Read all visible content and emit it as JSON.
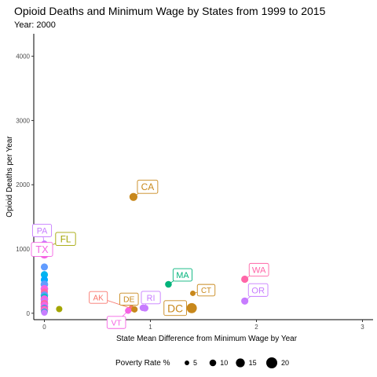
{
  "chart_data": {
    "type": "scatter",
    "title": "Opioid Deaths and Minimum Wage by States from 1999 to 2015",
    "subtitle": "Year: 2000",
    "xlabel": "State Mean Difference from Minimum Wage by Year",
    "ylabel": "Opioid Deaths per Year",
    "xlim": [
      -0.1,
      3.1
    ],
    "ylim": [
      -100,
      4350
    ],
    "x_ticks": [
      0,
      1,
      2,
      3
    ],
    "y_ticks": [
      0,
      1000,
      2000,
      3000,
      4000
    ],
    "grid": false,
    "legend": {
      "title": "Poverty Rate %",
      "position": "bottom",
      "entries": [
        {
          "label": "5",
          "value": 5
        },
        {
          "label": "10",
          "value": 10
        },
        {
          "label": "15",
          "value": 15
        },
        {
          "label": "20",
          "value": 20
        }
      ]
    },
    "labeled_points": [
      {
        "label": "CA",
        "x": 0.84,
        "y": 1810,
        "poverty": 13,
        "color": "#c8881c"
      },
      {
        "label": "PA",
        "x": 0.0,
        "y": 1080,
        "poverty": 10,
        "color": "#c77cff"
      },
      {
        "label": "FL",
        "x": 0.0,
        "y": 1010,
        "poverty": 12,
        "color": "#a3a500"
      },
      {
        "label": "TX",
        "x": 0.0,
        "y": 920,
        "poverty": 15,
        "color": "#f564e3"
      },
      {
        "label": "MA",
        "x": 1.17,
        "y": 450,
        "poverty": 10,
        "color": "#00b37a"
      },
      {
        "label": "WA",
        "x": 1.89,
        "y": 530,
        "poverty": 11,
        "color": "#ff66a8"
      },
      {
        "label": "OR",
        "x": 1.89,
        "y": 190,
        "poverty": 11,
        "color": "#c77cff"
      },
      {
        "label": "AK",
        "x": 0.82,
        "y": 75,
        "poverty": 8,
        "color": "#f8766d"
      },
      {
        "label": "DE",
        "x": 0.85,
        "y": 60,
        "poverty": 9,
        "color": "#c8881c"
      },
      {
        "label": "RI",
        "x": 0.93,
        "y": 85,
        "poverty": 10,
        "color": "#c77cff"
      },
      {
        "label": "VT",
        "x": 0.79,
        "y": 40,
        "poverty": 9,
        "color": "#f564e3"
      },
      {
        "label": "CT",
        "x": 1.4,
        "y": 310,
        "poverty": 7,
        "color": "#c8881c"
      },
      {
        "label": "DC",
        "x": 1.39,
        "y": 80,
        "poverty": 18,
        "color": "#c8881c"
      }
    ],
    "unlabeled_points": [
      {
        "x": 0.0,
        "y": 720,
        "poverty": 11,
        "color": "#619cff"
      },
      {
        "x": 0.0,
        "y": 600,
        "poverty": 11,
        "color": "#00b4f0"
      },
      {
        "x": 0.0,
        "y": 520,
        "poverty": 11,
        "color": "#00a9ff"
      },
      {
        "x": 0.0,
        "y": 450,
        "poverty": 12,
        "color": "#619cff"
      },
      {
        "x": 0.0,
        "y": 380,
        "poverty": 12,
        "color": "#f564e3"
      },
      {
        "x": 0.0,
        "y": 330,
        "poverty": 11,
        "color": "#ff66a8"
      },
      {
        "x": 0.0,
        "y": 280,
        "poverty": 12,
        "color": "#619cff"
      },
      {
        "x": 0.0,
        "y": 250,
        "poverty": 11,
        "color": "#00bfc4"
      },
      {
        "x": 0.0,
        "y": 220,
        "poverty": 12,
        "color": "#f564e3"
      },
      {
        "x": 0.0,
        "y": 180,
        "poverty": 11,
        "color": "#c77cff"
      },
      {
        "x": 0.0,
        "y": 150,
        "poverty": 12,
        "color": "#ff66a8"
      },
      {
        "x": 0.0,
        "y": 120,
        "poverty": 11,
        "color": "#e76bf3"
      },
      {
        "x": 0.0,
        "y": 100,
        "poverty": 12,
        "color": "#f564e3"
      },
      {
        "x": 0.0,
        "y": 80,
        "poverty": 10,
        "color": "#00a9ff"
      },
      {
        "x": 0.0,
        "y": 60,
        "poverty": 12,
        "color": "#ff66a8"
      },
      {
        "x": 0.0,
        "y": 40,
        "poverty": 11,
        "color": "#f564e3"
      },
      {
        "x": 0.0,
        "y": 20,
        "poverty": 10,
        "color": "#00bfc4"
      },
      {
        "x": 0.0,
        "y": 10,
        "poverty": 9,
        "color": "#c77cff"
      },
      {
        "x": 0.14,
        "y": 65,
        "poverty": 9,
        "color": "#a3a500"
      },
      {
        "x": 0.95,
        "y": 80,
        "poverty": 10,
        "color": "#c77cff"
      }
    ]
  }
}
